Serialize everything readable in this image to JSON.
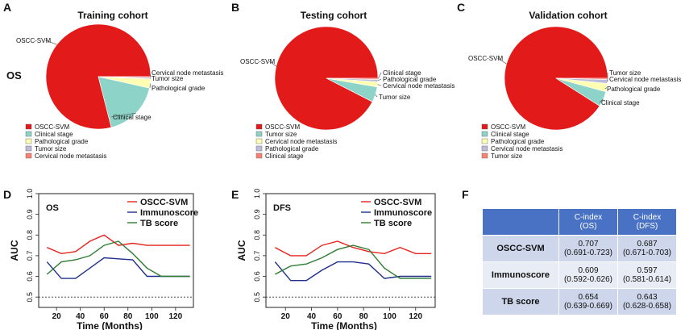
{
  "chart_data": [
    {
      "type": "pie",
      "panel": "A",
      "row_label": "OS",
      "title": "Training cohort",
      "slices": [
        {
          "label": "OSCC-SVM",
          "value": 79.0,
          "color": "#e21a1a"
        },
        {
          "label": "Clinical stage",
          "value": 17.5,
          "color": "#8dd3c7"
        },
        {
          "label": "Pathological grade",
          "value": 2.8,
          "color": "#ffffb3"
        },
        {
          "label": "Tumor size",
          "value": 0.4,
          "color": "#bebada"
        },
        {
          "label": "Cervical node metastasis",
          "value": 0.3,
          "color": "#fb8072"
        }
      ],
      "legend": [
        "OSCC-SVM",
        "Clinical stage",
        "Pathological grade",
        "Tumor size",
        "Cervical node metastasis"
      ]
    },
    {
      "type": "pie",
      "panel": "B",
      "title": "Testing cohort",
      "slices": [
        {
          "label": "OSCC-SVM",
          "value": 92.5,
          "color": "#e21a1a"
        },
        {
          "label": "Tumor size",
          "value": 4.8,
          "color": "#8dd3c7"
        },
        {
          "label": "Cervical node metastasis",
          "value": 1.6,
          "color": "#ffffb3"
        },
        {
          "label": "Pathological grade",
          "value": 0.7,
          "color": "#bebada"
        },
        {
          "label": "Clinical stage",
          "value": 0.4,
          "color": "#fb8072"
        }
      ],
      "legend": [
        "OSCC-SVM",
        "Tumor size",
        "Cervical node metastasis",
        "Pathological grade",
        "Clinical stage"
      ]
    },
    {
      "type": "pie",
      "panel": "C",
      "title": "Validation cohort",
      "slices": [
        {
          "label": "OSCC-SVM",
          "value": 91.0,
          "color": "#e21a1a"
        },
        {
          "label": "Clinical stage",
          "value": 4.8,
          "color": "#8dd3c7"
        },
        {
          "label": "Pathological grade",
          "value": 2.6,
          "color": "#ffffb3"
        },
        {
          "label": "Cervical node metastasis",
          "value": 1.2,
          "color": "#bebada"
        },
        {
          "label": "Tumor size",
          "value": 0.4,
          "color": "#fb8072"
        }
      ],
      "legend": [
        "OSCC-SVM",
        "Clinical stage",
        "Pathological grade",
        "Cervical node metastasis",
        "Tumor size"
      ]
    },
    {
      "type": "line",
      "panel": "D",
      "inset_label": "OS",
      "xlabel": "Time (Months)",
      "ylabel": "AUC",
      "xlim": [
        5,
        135
      ],
      "ylim": [
        0.45,
        1.0
      ],
      "xticks": [
        20,
        40,
        60,
        80,
        100,
        120
      ],
      "yticks": [
        0.5,
        0.6,
        0.7,
        0.8,
        0.9,
        1.0
      ],
      "reference_line": 0.5,
      "series": [
        {
          "name": "OSCC-SVM",
          "color": "#e8231f",
          "x": [
            12,
            24,
            36,
            48,
            60,
            72,
            84,
            96,
            108,
            120,
            132
          ],
          "y": [
            0.74,
            0.71,
            0.72,
            0.77,
            0.8,
            0.75,
            0.76,
            0.75,
            0.75,
            0.75,
            0.75
          ]
        },
        {
          "name": "Immunoscore",
          "color": "#1f2f8a",
          "x": [
            12,
            24,
            36,
            48,
            60,
            72,
            84,
            96,
            108,
            120,
            132
          ],
          "y": [
            0.67,
            0.59,
            0.59,
            0.64,
            0.69,
            0.685,
            0.68,
            0.6,
            0.6,
            0.6,
            0.6
          ]
        },
        {
          "name": "TB score",
          "color": "#2e7d32",
          "x": [
            12,
            24,
            36,
            48,
            60,
            72,
            84,
            96,
            108,
            120,
            132
          ],
          "y": [
            0.61,
            0.67,
            0.68,
            0.7,
            0.75,
            0.77,
            0.71,
            0.64,
            0.6,
            0.6,
            0.6
          ]
        }
      ]
    },
    {
      "type": "line",
      "panel": "E",
      "inset_label": "DFS",
      "xlabel": "Time (Months)",
      "ylabel": "AUC",
      "xlim": [
        5,
        135
      ],
      "ylim": [
        0.45,
        1.0
      ],
      "xticks": [
        20,
        40,
        60,
        80,
        100,
        120
      ],
      "yticks": [
        0.5,
        0.6,
        0.7,
        0.8,
        0.9,
        1.0
      ],
      "reference_line": 0.5,
      "series": [
        {
          "name": "OSCC-SVM",
          "color": "#e8231f",
          "x": [
            12,
            24,
            36,
            48,
            60,
            72,
            84,
            96,
            108,
            120,
            132
          ],
          "y": [
            0.74,
            0.7,
            0.7,
            0.75,
            0.77,
            0.74,
            0.72,
            0.71,
            0.74,
            0.71,
            0.71
          ]
        },
        {
          "name": "Immunoscore",
          "color": "#1f2f8a",
          "x": [
            12,
            24,
            36,
            48,
            60,
            72,
            84,
            96,
            108,
            120,
            132
          ],
          "y": [
            0.67,
            0.58,
            0.58,
            0.63,
            0.67,
            0.67,
            0.66,
            0.59,
            0.6,
            0.6,
            0.6
          ]
        },
        {
          "name": "TB score",
          "color": "#2e7d32",
          "x": [
            12,
            24,
            36,
            48,
            60,
            72,
            84,
            96,
            108,
            120,
            132
          ],
          "y": [
            0.61,
            0.65,
            0.66,
            0.69,
            0.73,
            0.75,
            0.73,
            0.64,
            0.59,
            0.59,
            0.59
          ]
        }
      ]
    },
    {
      "type": "table",
      "panel": "F",
      "columns": [
        "",
        "C-index\n(OS)",
        "C-index\n(DFS)"
      ],
      "rows": [
        {
          "name": "OSCC-SVM",
          "os": "0.707",
          "os_ci": "(0.691-0.723)",
          "dfs": "0.687",
          "dfs_ci": "(0.671-0.703)"
        },
        {
          "name": "Immunoscore",
          "os": "0.609",
          "os_ci": "(0.592-0.626)",
          "dfs": "0.597",
          "dfs_ci": "(0.581-0.614)"
        },
        {
          "name": "TB score",
          "os": "0.654",
          "os_ci": "(0.639-0.669)",
          "dfs": "0.643",
          "dfs_ci": "(0.628-0.658)"
        }
      ]
    }
  ]
}
